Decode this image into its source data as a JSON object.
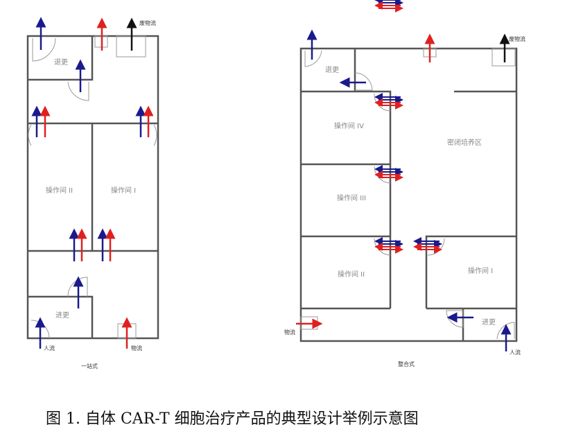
{
  "colors": {
    "person_flow": "#1a1a8c",
    "material_flow": "#e02020",
    "waste_flow": "#111111",
    "wall": "#555555"
  },
  "left_plan": {
    "title": "一站式",
    "rooms": {
      "exit_change": "退更",
      "op_room_2": "操作间 II",
      "op_room_1": "操作间 I",
      "entry_change": "进更"
    },
    "flows": {
      "waste": "废物流",
      "person": "人流",
      "material": "物流"
    }
  },
  "right_plan": {
    "title": "整合式",
    "rooms": {
      "exit_change": "退更",
      "op_room_4": "操作间 IV",
      "closed_culture": "密闭培养区",
      "op_room_3": "操作间 III",
      "op_room_2": "操作间 II",
      "op_room_1": "操作间 I",
      "entry_change": "进更"
    },
    "flows": {
      "waste": "废物流",
      "person": "人流",
      "material": "物流"
    }
  },
  "caption": "图 1.  自体 CAR-T 细胞治疗产品的典型设计举例示意图"
}
